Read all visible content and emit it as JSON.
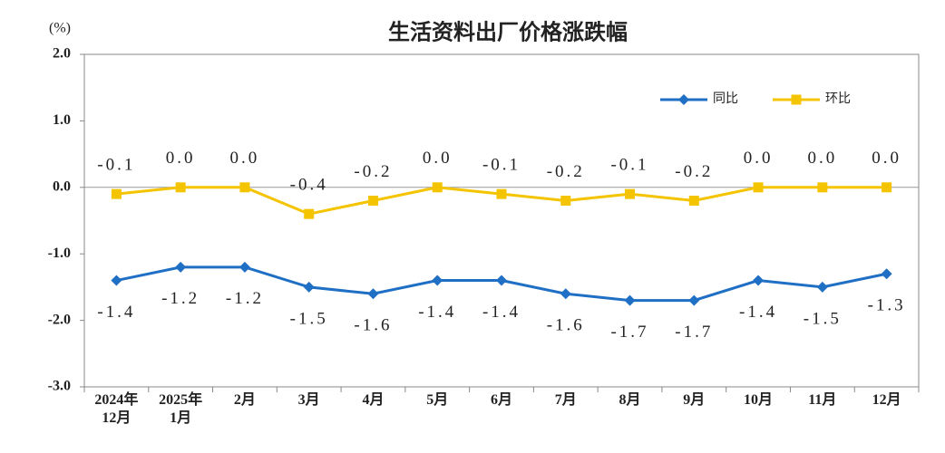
{
  "chart_data": {
    "type": "line",
    "title": "生活资料出厂价格涨跌幅",
    "y_label": "(%)",
    "categories": [
      "2024年\n12月",
      "2025年\n1月",
      "2月",
      "3月",
      "4月",
      "5月",
      "6月",
      "7月",
      "8月",
      "9月",
      "10月",
      "11月",
      "12月"
    ],
    "series": [
      {
        "name": "同比",
        "color": "#1f6fc5",
        "values": [
          -1.4,
          -1.2,
          -1.2,
          -1.5,
          -1.6,
          -1.4,
          -1.4,
          -1.6,
          -1.7,
          -1.7,
          -1.4,
          -1.5,
          -1.3
        ],
        "value_labels": [
          "-1.4",
          "-1.2",
          "-1.2",
          "-1.5",
          "-1.6",
          "-1.4",
          "-1.4",
          "-1.6",
          "-1.7",
          "-1.7",
          "-1.4",
          "-1.5",
          "-1.3"
        ]
      },
      {
        "name": "环比",
        "color": "#f5c400",
        "values": [
          -0.1,
          0,
          0,
          -0.4,
          -0.2,
          0,
          -0.1,
          -0.2,
          -0.1,
          -0.2,
          0,
          0,
          0
        ],
        "value_labels": [
          "-0.1",
          "0.0",
          "0.0",
          "-0.4",
          "-0.2",
          "0.0",
          "-0.1",
          "-0.2",
          "-0.1",
          "-0.2",
          "0.0",
          "0.0",
          "0.0"
        ]
      }
    ],
    "ylim": [
      -3,
      2
    ],
    "yticks": [
      {
        "value": 2,
        "label": "2.0"
      },
      {
        "value": 1,
        "label": "1.0"
      },
      {
        "value": 0,
        "label": "0.0"
      },
      {
        "value": -1,
        "label": "-1.0"
      },
      {
        "value": -2,
        "label": "-2.0"
      },
      {
        "value": -3,
        "label": "-3.0"
      }
    ]
  }
}
